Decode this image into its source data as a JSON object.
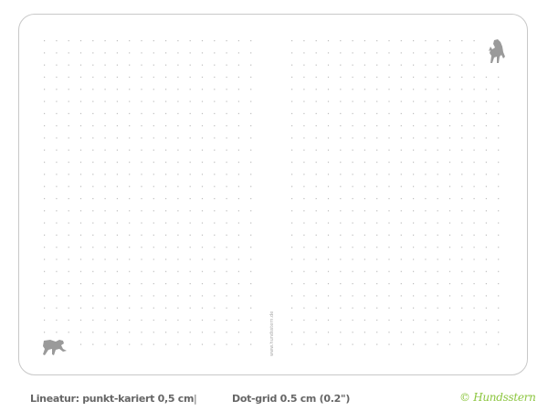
{
  "page": {
    "spine_text": "www.hundsstern.de",
    "dot_color": "#bdbdbd",
    "icons": [
      "dog-standing-icon",
      "dog-running-icon"
    ]
  },
  "footer": {
    "ruling_de": "Lineatur: punkt-kariert 0,5 cm",
    "separator": "|",
    "ruling_en": "Dot-grid 0.5 cm (0.2\")",
    "brand": "© Hundsstern",
    "brand_color": "#8cc63f"
  }
}
